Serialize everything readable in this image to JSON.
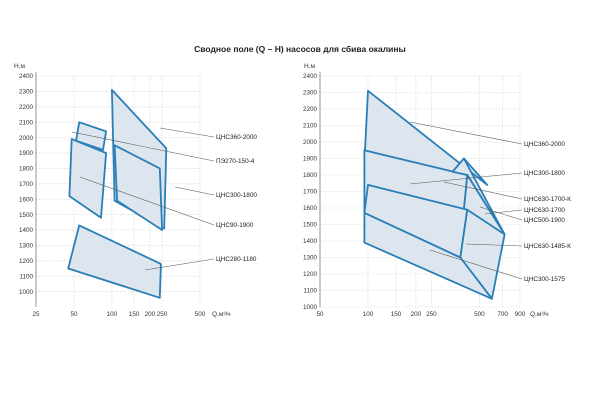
{
  "title": "Сводное поле (Q – H) насосов для сбива окалины",
  "chart_data": [
    {
      "type": "area",
      "ylabel": "H,м",
      "xlabel": "Q,м³/ч",
      "xscale": "log",
      "xticks": [
        25,
        50,
        100,
        150,
        200,
        250,
        500
      ],
      "xtick_labels": [
        "25",
        "50",
        "100",
        "150",
        "200",
        "250",
        "500"
      ],
      "xlim": [
        25,
        500
      ],
      "yticks": [
        1000,
        1100,
        1200,
        1300,
        1400,
        1500,
        1600,
        1700,
        1800,
        1900,
        2000,
        2100,
        2200,
        2300,
        2400
      ],
      "ylim": [
        900,
        2400
      ],
      "grid": true,
      "series": [
        {
          "name": "ЦНС360-2000",
          "polygon": [
            [
              100,
              2310
            ],
            [
              105,
              1590
            ],
            [
              260,
              1410
            ],
            [
              270,
              1930
            ]
          ]
        },
        {
          "name": "ПЭ270-150-4",
          "polygon": [
            [
              55,
              2100
            ],
            [
              52,
              1980
            ],
            [
              85,
              1920
            ],
            [
              90,
              2040
            ]
          ]
        },
        {
          "name": "ЦНС300-1800",
          "polygon": [
            [
              105,
              1950
            ],
            [
              110,
              1590
            ],
            [
              250,
              1400
            ],
            [
              240,
              1800
            ]
          ]
        },
        {
          "name": "ЦНС90-1900",
          "polygon": [
            [
              48,
              1990
            ],
            [
              46,
              1620
            ],
            [
              82,
              1480
            ],
            [
              90,
              1900
            ]
          ]
        },
        {
          "name": "ЦНС280-1180",
          "polygon": [
            [
              55,
              1430
            ],
            [
              45,
              1150
            ],
            [
              240,
              960
            ],
            [
              245,
              1180
            ]
          ]
        }
      ],
      "labels": [
        "ЦНС360-2000",
        "ПЭ270-150-4",
        "ЦНС300-1800",
        "ЦНС90-1900",
        "ЦНС280-1180"
      ]
    },
    {
      "type": "area",
      "ylabel": "H,м",
      "xlabel": "Q,м³/ч",
      "xscale": "log",
      "xticks": [
        50,
        100,
        150,
        200,
        250,
        500,
        700,
        900
      ],
      "xtick_labels": [
        "50",
        "100",
        "150",
        "200",
        "250",
        "500",
        "700",
        "900"
      ],
      "xlim": [
        50,
        900
      ],
      "yticks": [
        1000,
        1100,
        1200,
        1300,
        1400,
        1500,
        1600,
        1700,
        1800,
        1900,
        2000,
        2100,
        2200,
        2300,
        2400
      ],
      "ylim": [
        1000,
        2400
      ],
      "grid": true,
      "series": [
        {
          "name": "ЦНС360-2000",
          "polygon": [
            [
              100,
              2310
            ],
            [
              95,
              1880
            ],
            [
              340,
              1820
            ],
            [
              400,
              1900
            ],
            [
              560,
              1740
            ]
          ]
        },
        {
          "name": "ЦНС300-1800",
          "polygon": [
            [
              95,
              1950
            ],
            [
              95,
              1570
            ],
            [
              400,
              1590
            ],
            [
              420,
              1800
            ]
          ]
        },
        {
          "name": "ЦНС630-1700-К",
          "polygon": [
            [
              400,
              1900
            ],
            [
              340,
              1820
            ],
            [
              420,
              1800
            ],
            [
              720,
              1440
            ]
          ]
        },
        {
          "name": "ЦНС630-1700",
          "polygon": [
            [
              420,
              1800
            ],
            [
              400,
              1590
            ],
            [
              720,
              1440
            ]
          ]
        },
        {
          "name": "ЦНС500-1900",
          "polygon": [
            [
              100,
              1740
            ],
            [
              95,
              1570
            ],
            [
              380,
              1300
            ],
            [
              420,
              1590
            ]
          ]
        },
        {
          "name": "ЦНС630-1485-К",
          "polygon": [
            [
              420,
              1590
            ],
            [
              380,
              1300
            ],
            [
              600,
              1050
            ],
            [
              720,
              1440
            ]
          ]
        },
        {
          "name": "ЦНС300-1575",
          "polygon": [
            [
              95,
              1390
            ],
            [
              95,
              1570
            ],
            [
              380,
              1300
            ],
            [
              600,
              1050
            ]
          ]
        }
      ],
      "labels": [
        "ЦНС360-2000",
        "ЦНС300-1800",
        "ЦНС630-1700-К",
        "ЦНС630-1700",
        "ЦНС500-1900",
        "ЦНС630-1485-К",
        "ЦНС300-1575"
      ]
    }
  ]
}
